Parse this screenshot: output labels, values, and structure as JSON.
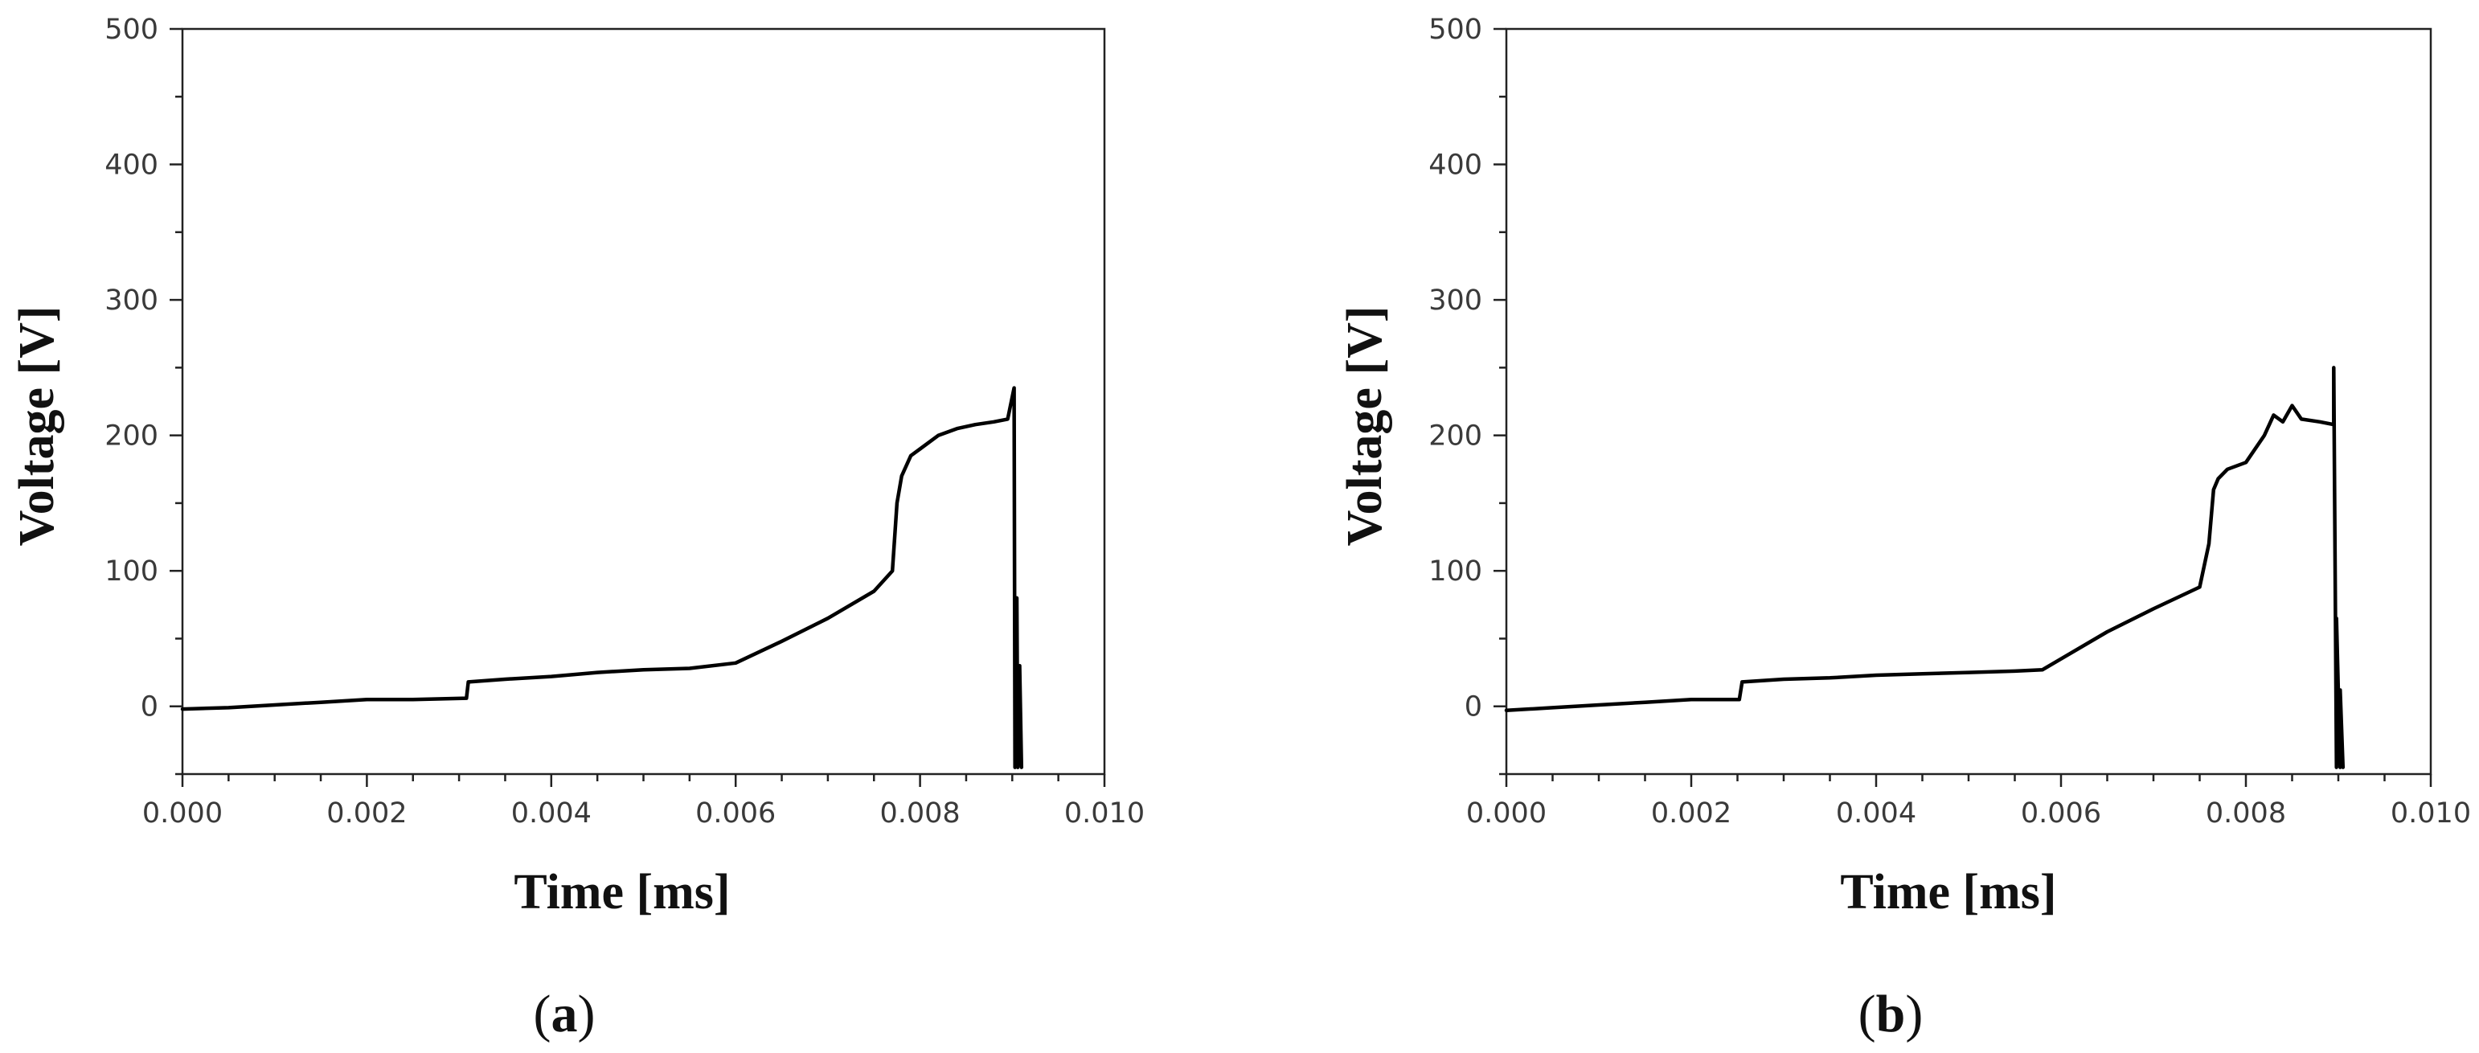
{
  "chart_data": [
    {
      "type": "line",
      "panel": "(a)",
      "panel_letter": "a",
      "xlabel": "Time [ms]",
      "ylabel": "Voltage [V]",
      "xlim": [
        0.0,
        0.01
      ],
      "ylim": [
        -50,
        500
      ],
      "xticks": [
        0.0,
        0.002,
        0.004,
        0.006,
        0.008,
        0.01
      ],
      "xtick_labels": [
        "0.000",
        "0.002",
        "0.004",
        "0.006",
        "0.008",
        "0.010"
      ],
      "yticks": [
        0,
        100,
        200,
        300,
        400,
        500
      ],
      "ytick_labels": [
        "0",
        "100",
        "200",
        "300",
        "400",
        "500"
      ],
      "grid": false,
      "line_color": "#000000",
      "series": [
        {
          "x": [
            0.0,
            0.0005,
            0.001,
            0.0015,
            0.002,
            0.0025,
            0.00308,
            0.0031,
            0.0035,
            0.004,
            0.0045,
            0.005,
            0.0055,
            0.006,
            0.0065,
            0.007,
            0.0075,
            0.0077,
            0.00775,
            0.0078,
            0.0079,
            0.008,
            0.0082,
            0.0084,
            0.0086,
            0.0088,
            0.00895,
            0.00902,
            0.00903,
            0.00905,
            0.00906,
            0.00908,
            0.0091
          ],
          "y": [
            -2,
            -1,
            1,
            3,
            5,
            5,
            6,
            18,
            20,
            22,
            25,
            27,
            28,
            32,
            48,
            65,
            85,
            100,
            150,
            170,
            185,
            190,
            200,
            205,
            208,
            210,
            212,
            235,
            -45,
            80,
            -45,
            30,
            -45
          ]
        }
      ]
    },
    {
      "type": "line",
      "panel": "(b)",
      "panel_letter": "b",
      "xlabel": "Time [ms]",
      "ylabel": "Voltage [V]",
      "xlim": [
        0.0,
        0.01
      ],
      "ylim": [
        -50,
        500
      ],
      "xticks": [
        0.0,
        0.002,
        0.004,
        0.006,
        0.008,
        0.01
      ],
      "xtick_labels": [
        "0.000",
        "0.002",
        "0.004",
        "0.006",
        "0.008",
        "0.010"
      ],
      "yticks": [
        0,
        100,
        200,
        300,
        400,
        500
      ],
      "ytick_labels": [
        "0",
        "100",
        "200",
        "300",
        "400",
        "500"
      ],
      "grid": false,
      "line_color": "#000000",
      "series": [
        {
          "x": [
            0.0,
            0.0005,
            0.001,
            0.0015,
            0.002,
            0.00252,
            0.00255,
            0.003,
            0.0035,
            0.004,
            0.0045,
            0.005,
            0.0055,
            0.0058,
            0.006,
            0.0065,
            0.007,
            0.0075,
            0.0076,
            0.00765,
            0.0077,
            0.0078,
            0.008,
            0.0082,
            0.0083,
            0.0084,
            0.0085,
            0.0086,
            0.0088,
            0.00895,
            0.00895,
            0.00898,
            0.00898,
            0.00902,
            0.00902,
            0.00905
          ],
          "y": [
            -3,
            -1,
            1,
            3,
            5,
            5,
            18,
            20,
            21,
            23,
            24,
            25,
            26,
            27,
            35,
            55,
            72,
            88,
            120,
            160,
            168,
            175,
            180,
            200,
            215,
            210,
            222,
            212,
            210,
            208,
            250,
            -45,
            65,
            -45,
            12,
            -45
          ]
        }
      ]
    }
  ]
}
